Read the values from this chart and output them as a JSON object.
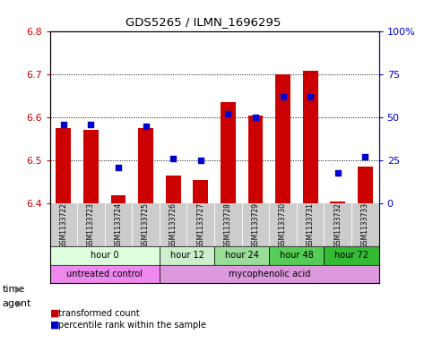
{
  "title": "GDS5265 / ILMN_1696295",
  "samples": [
    "GSM1133722",
    "GSM1133723",
    "GSM1133724",
    "GSM1133725",
    "GSM1133726",
    "GSM1133727",
    "GSM1133728",
    "GSM1133729",
    "GSM1133730",
    "GSM1133731",
    "GSM1133732",
    "GSM1133733"
  ],
  "bar_values": [
    6.575,
    6.572,
    6.42,
    6.575,
    6.465,
    6.455,
    6.635,
    6.605,
    6.7,
    6.71,
    6.404,
    6.485
  ],
  "bar_base": 6.4,
  "dot_values": [
    46,
    46,
    21,
    45,
    26,
    25,
    52,
    50,
    62,
    62,
    18,
    27
  ],
  "ylim_left": [
    6.4,
    6.8
  ],
  "ylim_right": [
    0,
    100
  ],
  "yticks_left": [
    6.4,
    6.5,
    6.6,
    6.7,
    6.8
  ],
  "yticks_right": [
    0,
    25,
    50,
    75,
    100
  ],
  "ytick_labels_right": [
    "0",
    "25",
    "50",
    "75",
    "100%"
  ],
  "bar_color": "#cc0000",
  "dot_color": "#0000cc",
  "time_groups": [
    {
      "label": "hour 0",
      "start": 0,
      "end": 4,
      "color": "#ddffdd"
    },
    {
      "label": "hour 12",
      "start": 4,
      "end": 6,
      "color": "#cceecc"
    },
    {
      "label": "hour 24",
      "start": 6,
      "end": 8,
      "color": "#99dd99"
    },
    {
      "label": "hour 48",
      "start": 8,
      "end": 10,
      "color": "#55cc55"
    },
    {
      "label": "hour 72",
      "start": 10,
      "end": 12,
      "color": "#33bb33"
    }
  ],
  "agent_groups": [
    {
      "label": "untreated control",
      "start": 0,
      "end": 4,
      "color": "#ee88ee"
    },
    {
      "label": "mycophenolic acid",
      "start": 4,
      "end": 12,
      "color": "#dd99dd"
    }
  ],
  "legend_items": [
    {
      "label": "transformed count",
      "color": "#cc0000"
    },
    {
      "label": "percentile rank within the sample",
      "color": "#0000cc"
    }
  ],
  "xlabel_time": "time",
  "xlabel_agent": "agent",
  "bg_color": "#ffffff",
  "plot_bg": "#ffffff",
  "bar_width": 0.55,
  "sample_bg": "#cccccc",
  "spine_color": "#000000"
}
